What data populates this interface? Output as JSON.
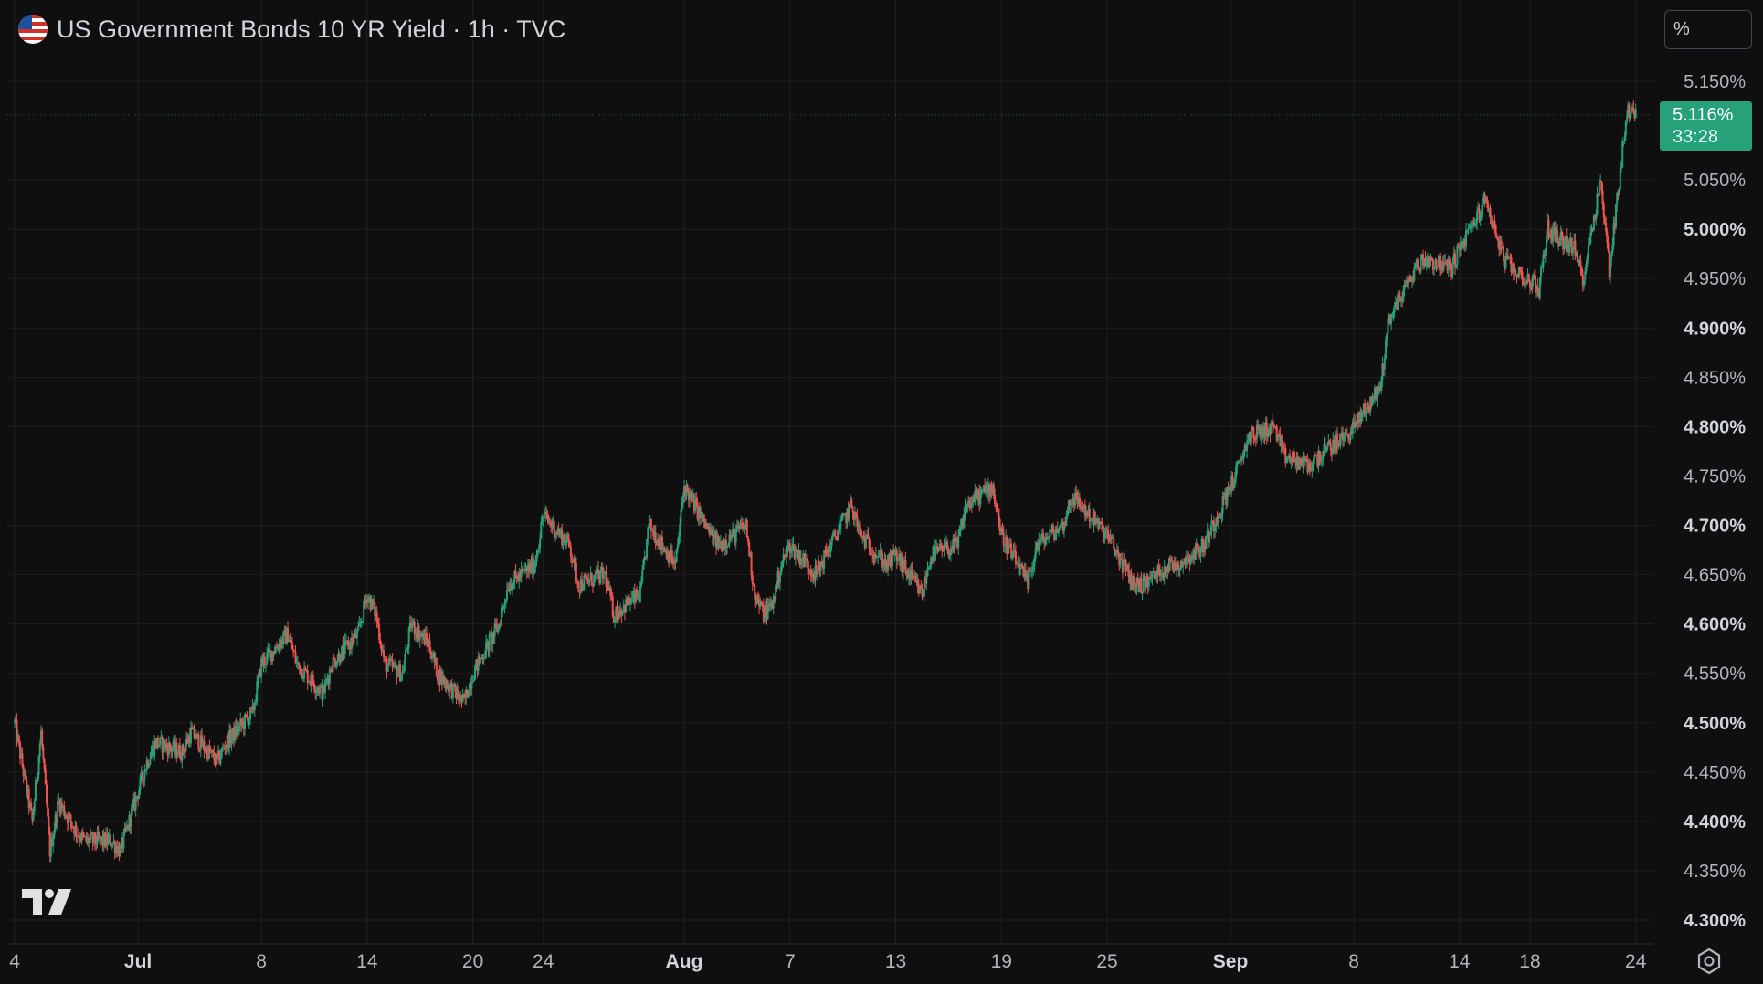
{
  "header": {
    "title": "US Government Bonds 10 YR Yield · 1h · TVC",
    "unit_button": "%"
  },
  "last_price": {
    "value": "5.116%",
    "countdown": "33:28",
    "raw": 5.116
  },
  "colors": {
    "background": "#0f0f0f",
    "grid": "#1f1f1f",
    "up": "#26a17a",
    "down": "#ef5350",
    "axis_text": "#b2b5be",
    "axis_text_bold": "#d1d4dc"
  },
  "icons": [
    "us-flag-icon",
    "tradingview-logo-icon",
    "settings-gear-icon"
  ],
  "chart_data": {
    "type": "candlestick",
    "interval": "1h",
    "ylim": [
      4.275,
      5.17
    ],
    "y_ticks": [
      {
        "value": 5.15,
        "label": "5.150%",
        "bold": false
      },
      {
        "value": 5.05,
        "label": "5.050%",
        "bold": false
      },
      {
        "value": 5.0,
        "label": "5.000%",
        "bold": true
      },
      {
        "value": 4.95,
        "label": "4.950%",
        "bold": false
      },
      {
        "value": 4.9,
        "label": "4.900%",
        "bold": true
      },
      {
        "value": 4.85,
        "label": "4.850%",
        "bold": false
      },
      {
        "value": 4.8,
        "label": "4.800%",
        "bold": true
      },
      {
        "value": 4.75,
        "label": "4.750%",
        "bold": false
      },
      {
        "value": 4.7,
        "label": "4.700%",
        "bold": true
      },
      {
        "value": 4.65,
        "label": "4.650%",
        "bold": false
      },
      {
        "value": 4.6,
        "label": "4.600%",
        "bold": true
      },
      {
        "value": 4.55,
        "label": "4.550%",
        "bold": false
      },
      {
        "value": 4.5,
        "label": "4.500%",
        "bold": true
      },
      {
        "value": 4.45,
        "label": "4.450%",
        "bold": false
      },
      {
        "value": 4.4,
        "label": "4.400%",
        "bold": true
      },
      {
        "value": 4.35,
        "label": "4.350%",
        "bold": false
      },
      {
        "value": 4.3,
        "label": "4.300%",
        "bold": true
      }
    ],
    "x_ticks": [
      {
        "date": "2023-06-24",
        "label": "4",
        "bold": false
      },
      {
        "date": "2023-07-01",
        "label": "Jul",
        "bold": true
      },
      {
        "date": "2023-07-08",
        "label": "8",
        "bold": false
      },
      {
        "date": "2023-07-14",
        "label": "14",
        "bold": false
      },
      {
        "date": "2023-07-20",
        "label": "20",
        "bold": false
      },
      {
        "date": "2023-07-24",
        "label": "24",
        "bold": false
      },
      {
        "date": "2023-08-01",
        "label": "Aug",
        "bold": true
      },
      {
        "date": "2023-08-07",
        "label": "7",
        "bold": false
      },
      {
        "date": "2023-08-13",
        "label": "13",
        "bold": false
      },
      {
        "date": "2023-08-19",
        "label": "19",
        "bold": false
      },
      {
        "date": "2023-08-25",
        "label": "25",
        "bold": false
      },
      {
        "date": "2023-09-01",
        "label": "Sep",
        "bold": true
      },
      {
        "date": "2023-09-08",
        "label": "8",
        "bold": false
      },
      {
        "date": "2023-09-14",
        "label": "14",
        "bold": false
      },
      {
        "date": "2023-09-18",
        "label": "18",
        "bold": false
      },
      {
        "date": "2023-09-24",
        "label": "24",
        "bold": false
      }
    ],
    "price_path": [
      [
        "2023-06-24",
        4.5
      ],
      [
        "2023-06-25",
        4.49
      ],
      [
        "2023-06-25",
        4.4
      ],
      [
        "2023-06-26",
        4.42
      ],
      [
        "2023-06-26",
        4.37
      ],
      [
        "2023-06-27",
        4.39
      ],
      [
        "2023-06-28",
        4.38
      ],
      [
        "2023-06-29",
        4.38
      ],
      [
        "2023-06-30",
        4.37
      ],
      [
        "2023-07-01",
        4.46
      ],
      [
        "2023-07-02",
        4.48
      ],
      [
        "2023-07-03",
        4.47
      ],
      [
        "2023-07-04",
        4.49
      ],
      [
        "2023-07-05",
        4.46
      ],
      [
        "2023-07-06",
        4.48
      ],
      [
        "2023-07-07",
        4.51
      ],
      [
        "2023-07-08",
        4.56
      ],
      [
        "2023-07-09",
        4.59
      ],
      [
        "2023-07-10",
        4.56
      ],
      [
        "2023-07-11",
        4.53
      ],
      [
        "2023-07-12",
        4.56
      ],
      [
        "2023-07-13",
        4.59
      ],
      [
        "2023-07-14",
        4.63
      ],
      [
        "2023-07-14",
        4.61
      ],
      [
        "2023-07-15",
        4.56
      ],
      [
        "2023-07-16",
        4.6
      ],
      [
        "2023-07-16",
        4.55
      ],
      [
        "2023-07-17",
        4.58
      ],
      [
        "2023-07-18",
        4.55
      ],
      [
        "2023-07-19",
        4.52
      ],
      [
        "2023-07-20",
        4.55
      ],
      [
        "2023-07-21",
        4.6
      ],
      [
        "2023-07-22",
        4.64
      ],
      [
        "2023-07-23",
        4.66
      ],
      [
        "2023-07-24",
        4.71
      ],
      [
        "2023-07-25",
        4.68
      ],
      [
        "2023-07-26",
        4.64
      ],
      [
        "2023-07-27",
        4.65
      ],
      [
        "2023-07-28",
        4.61
      ],
      [
        "2023-07-29",
        4.63
      ],
      [
        "2023-07-30",
        4.7
      ],
      [
        "2023-07-31",
        4.66
      ],
      [
        "2023-08-01",
        4.74
      ],
      [
        "2023-08-02",
        4.69
      ],
      [
        "2023-08-03",
        4.68
      ],
      [
        "2023-08-04",
        4.7
      ],
      [
        "2023-08-05",
        4.63
      ],
      [
        "2023-08-05",
        4.61
      ],
      [
        "2023-08-06",
        4.62
      ],
      [
        "2023-08-06",
        4.66
      ],
      [
        "2023-08-07",
        4.68
      ],
      [
        "2023-08-08",
        4.65
      ],
      [
        "2023-08-09",
        4.67
      ],
      [
        "2023-08-10",
        4.72
      ],
      [
        "2023-08-11",
        4.69
      ],
      [
        "2023-08-12",
        4.66
      ],
      [
        "2023-08-13",
        4.67
      ],
      [
        "2023-08-14",
        4.63
      ],
      [
        "2023-08-15",
        4.67
      ],
      [
        "2023-08-16",
        4.68
      ],
      [
        "2023-08-17",
        4.72
      ],
      [
        "2023-08-18",
        4.74
      ],
      [
        "2023-08-19",
        4.69
      ],
      [
        "2023-08-20",
        4.64
      ],
      [
        "2023-08-21",
        4.68
      ],
      [
        "2023-08-22",
        4.7
      ],
      [
        "2023-08-23",
        4.73
      ],
      [
        "2023-08-24",
        4.7
      ],
      [
        "2023-08-25",
        4.69
      ],
      [
        "2023-08-26",
        4.64
      ],
      [
        "2023-08-27",
        4.64
      ],
      [
        "2023-08-28",
        4.66
      ],
      [
        "2023-08-29",
        4.66
      ],
      [
        "2023-08-30",
        4.68
      ],
      [
        "2023-08-31",
        4.7
      ],
      [
        "2023-09-01",
        4.76
      ],
      [
        "2023-09-02",
        4.79
      ],
      [
        "2023-09-03",
        4.8
      ],
      [
        "2023-09-04",
        4.77
      ],
      [
        "2023-09-05",
        4.76
      ],
      [
        "2023-09-06",
        4.77
      ],
      [
        "2023-09-07",
        4.79
      ],
      [
        "2023-09-08",
        4.8
      ],
      [
        "2023-09-09",
        4.84
      ],
      [
        "2023-09-10",
        4.91
      ],
      [
        "2023-09-11",
        4.96
      ],
      [
        "2023-09-12",
        4.97
      ],
      [
        "2023-09-13",
        4.96
      ],
      [
        "2023-09-14",
        4.98
      ],
      [
        "2023-09-15",
        5.03
      ],
      [
        "2023-09-16",
        5.0
      ],
      [
        "2023-09-16",
        4.97
      ],
      [
        "2023-09-17",
        4.96
      ],
      [
        "2023-09-18",
        4.94
      ],
      [
        "2023-09-19",
        5.0
      ],
      [
        "2023-09-20",
        4.98
      ],
      [
        "2023-09-21",
        4.95
      ],
      [
        "2023-09-22",
        4.96
      ],
      [
        "2023-09-22",
        5.05
      ],
      [
        "2023-09-23",
        5.12
      ],
      [
        "2023-09-24",
        5.116
      ]
    ]
  }
}
